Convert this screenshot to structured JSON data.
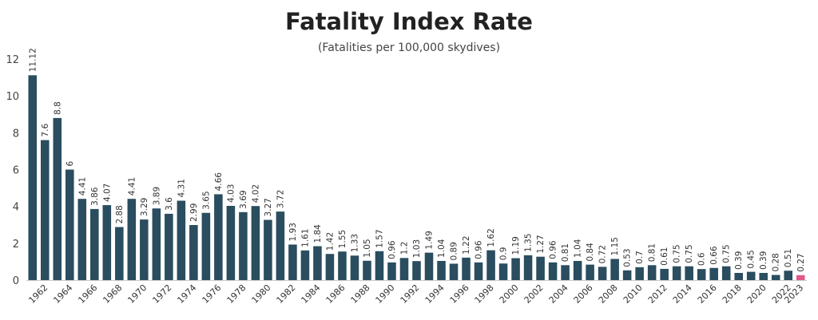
{
  "chart_data": {
    "type": "bar",
    "title": "Fatality Index Rate",
    "subtitle": "(Fatalities per 100,000 skydives)",
    "xlabel": "",
    "ylabel": "",
    "ylim": [
      0,
      12
    ],
    "yticks": [
      "0",
      "2",
      "4",
      "6",
      "8",
      "10",
      "12"
    ],
    "grid": false,
    "legend": "none",
    "bar_color": "#2a4d5f",
    "highlight_color": "#e05a86",
    "highlight_category": "2023",
    "categories": [
      "1961",
      "1962",
      "1963",
      "1964",
      "1965",
      "1966",
      "1967",
      "1968",
      "1969",
      "1970",
      "1971",
      "1972",
      "1973",
      "1974",
      "1975",
      "1976",
      "1977",
      "1978",
      "1979",
      "1980",
      "1981",
      "1982",
      "1983",
      "1984",
      "1985",
      "1986",
      "1987",
      "1988",
      "1989",
      "1990",
      "1991",
      "1992",
      "1993",
      "1994",
      "1995",
      "1996",
      "1997",
      "1998",
      "1999",
      "2000",
      "2001",
      "2002",
      "2003",
      "2004",
      "2005",
      "2006",
      "2007",
      "2008",
      "2009",
      "2010",
      "2011",
      "2012",
      "2013",
      "2014",
      "2015",
      "2016",
      "2017",
      "2018",
      "2019",
      "2020",
      "2021",
      "2022",
      "2023"
    ],
    "tick_labels": [
      "",
      "1962",
      "",
      "1964",
      "",
      "1966",
      "",
      "1968",
      "",
      "1970",
      "",
      "1972",
      "",
      "1974",
      "",
      "1976",
      "",
      "1978",
      "",
      "1980",
      "",
      "1982",
      "",
      "1984",
      "",
      "1986",
      "",
      "1988",
      "",
      "1990",
      "",
      "1992",
      "",
      "1994",
      "",
      "1996",
      "",
      "1998",
      "",
      "2000",
      "",
      "2002",
      "",
      "2004",
      "",
      "2006",
      "",
      "2008",
      "",
      "2010",
      "",
      "2012",
      "",
      "2014",
      "",
      "2016",
      "",
      "2018",
      "",
      "2020",
      "",
      "2022",
      "2023"
    ],
    "values": [
      11.12,
      7.6,
      8.8,
      6,
      4.41,
      3.86,
      4.07,
      2.88,
      4.41,
      3.29,
      3.89,
      3.6,
      4.31,
      2.99,
      3.65,
      4.66,
      4.03,
      3.69,
      4.02,
      3.27,
      3.72,
      1.93,
      1.61,
      1.84,
      1.42,
      1.55,
      1.33,
      1.05,
      1.57,
      0.96,
      1.2,
      1.03,
      1.49,
      1.04,
      0.89,
      1.22,
      0.96,
      1.62,
      0.9,
      1.19,
      1.35,
      1.27,
      0.96,
      0.81,
      1.04,
      0.84,
      0.72,
      1.15,
      0.53,
      0.7,
      0.81,
      0.61,
      0.75,
      0.75,
      0.6,
      0.66,
      0.75,
      0.39,
      0.45,
      0.39,
      0.28,
      0.51,
      0.27
    ],
    "data_labels": [
      "11.12",
      "7.6",
      "8.8",
      "6",
      "4.41",
      "3.86",
      "4.07",
      "2.88",
      "4.41",
      "3.29",
      "3.89",
      "3.6",
      "4.31",
      "2.99",
      "3.65",
      "4.66",
      "4.03",
      "3.69",
      "4.02",
      "3.27",
      "3.72",
      "1.93",
      "1.61",
      "1.84",
      "1.42",
      "1.55",
      "1.33",
      "1.05",
      "1.57",
      "0.96",
      "1.2",
      "1.03",
      "1.49",
      "1.04",
      "0.89",
      "1.22",
      "0.96",
      "1.62",
      "0.9",
      "1.19",
      "1.35",
      "1.27",
      "0.96",
      "0.81",
      "1.04",
      "0.84",
      "0.72",
      "1.15",
      "0.53",
      "0.7",
      "0.81",
      "0.61",
      "0.75",
      "0.75",
      "0.6",
      "0.66",
      "0.75",
      "0.39",
      "0.45",
      "0.39",
      "0.28",
      "0.51",
      "0.27"
    ]
  }
}
